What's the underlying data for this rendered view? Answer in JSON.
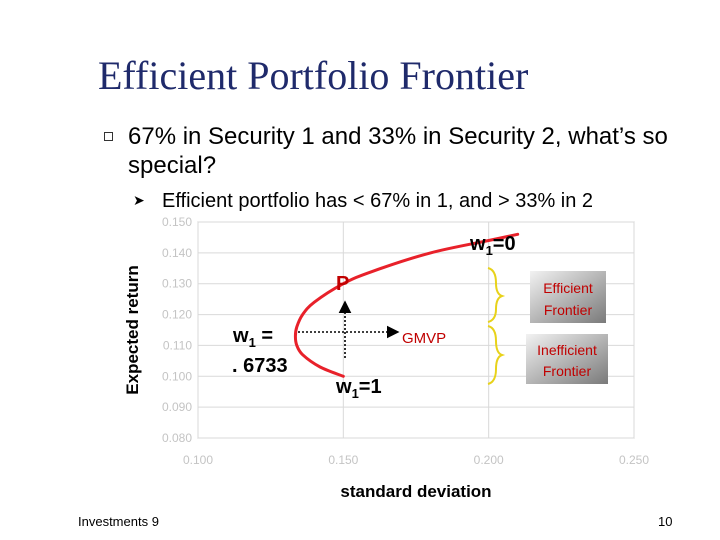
{
  "slide": {
    "title": "Efficient Portfolio Frontier",
    "bullet_main": "67% in Security 1 and 33% in Security 2, what’s so special?",
    "bullet_sub": "Efficient portfolio has < 67% in 1, and > 33% in 2",
    "footer_left": "Investments 9",
    "footer_right": "10"
  },
  "colors": {
    "title": "#1f2a6b",
    "curve": "#e8212a",
    "annotation_red": "#c00000",
    "brace": "#e8d21a",
    "plot_bg": "#ffffff",
    "grid": "#d9d9d9"
  },
  "annotations": {
    "w1_zero": "w1=0",
    "p_label": "P",
    "w1_6733_line1": "w1 =",
    "w1_6733_line2": ". 6733",
    "gmvp_label": "GMVP",
    "w1_one": "w1=1",
    "efficient_frontier": "Efficient Frontier",
    "inefficient_frontier": "Inefficient Frontier"
  },
  "chart_data": {
    "type": "line",
    "xlabel": "standard deviation",
    "ylabel": "Expected return",
    "xlim": [
      0.1,
      0.25
    ],
    "ylim": [
      0.08,
      0.15
    ],
    "x_ticks": [
      "0.100",
      "0.150",
      "0.200",
      "0.250"
    ],
    "y_ticks": [
      "0.080",
      "0.090",
      "0.100",
      "0.110",
      "0.120",
      "0.130",
      "0.140",
      "0.150"
    ],
    "grid": true,
    "series": [
      {
        "x": [
          0.15,
          0.142,
          0.136,
          0.134,
          0.1335,
          0.134,
          0.136,
          0.14,
          0.15,
          0.16,
          0.18,
          0.2,
          0.21
        ],
        "y": [
          0.1,
          0.103,
          0.107,
          0.11,
          0.113,
          0.116,
          0.12,
          0.124,
          0.13,
          0.134,
          0.14,
          0.144,
          0.146
        ]
      }
    ]
  }
}
